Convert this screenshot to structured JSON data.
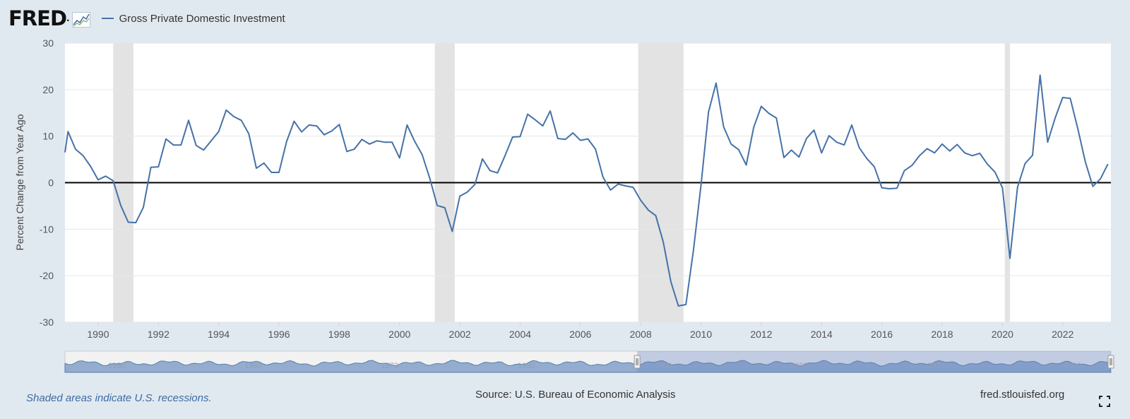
{
  "header": {
    "logo_text": "FRED",
    "legend_label": "Gross Private Domestic Investment"
  },
  "chart_data": {
    "type": "line",
    "title": "",
    "ylabel": "Percent Change from Year Ago",
    "xlabel": "",
    "ylim": [
      -30,
      30
    ],
    "xlim": [
      1988.9,
      2023.6
    ],
    "yticks": [
      -30,
      -20,
      -10,
      0,
      10,
      20,
      30
    ],
    "xticks": [
      "1990",
      "1992",
      "1994",
      "1996",
      "1998",
      "2000",
      "2002",
      "2004",
      "2006",
      "2008",
      "2010",
      "2012",
      "2014",
      "2016",
      "2018",
      "2020",
      "2022"
    ],
    "grid": true,
    "series_color": "#4572a7",
    "recession_color": "#e3e3e3",
    "recessions": [
      [
        1990.5,
        1991.17
      ],
      [
        2001.17,
        2001.83
      ],
      [
        2007.92,
        2009.42
      ],
      [
        2020.08,
        2020.25
      ]
    ],
    "series": [
      {
        "name": "Gross Private Domestic Investment",
        "x": [
          1988.9,
          1989.0,
          1989.25,
          1989.5,
          1989.75,
          1990.0,
          1990.25,
          1990.5,
          1990.75,
          1991.0,
          1991.25,
          1991.5,
          1991.75,
          1992.0,
          1992.25,
          1992.5,
          1992.75,
          1993.0,
          1993.25,
          1993.5,
          1993.75,
          1994.0,
          1994.25,
          1994.5,
          1994.75,
          1995.0,
          1995.25,
          1995.5,
          1995.75,
          1996.0,
          1996.25,
          1996.5,
          1996.75,
          1997.0,
          1997.25,
          1997.5,
          1997.75,
          1998.0,
          1998.25,
          1998.5,
          1998.75,
          1999.0,
          1999.25,
          1999.5,
          1999.75,
          2000.0,
          2000.25,
          2000.5,
          2000.75,
          2001.0,
          2001.25,
          2001.5,
          2001.75,
          2002.0,
          2002.25,
          2002.5,
          2002.75,
          2003.0,
          2003.25,
          2003.5,
          2003.75,
          2004.0,
          2004.25,
          2004.5,
          2004.75,
          2005.0,
          2005.25,
          2005.5,
          2005.75,
          2006.0,
          2006.25,
          2006.5,
          2006.75,
          2007.0,
          2007.25,
          2007.5,
          2007.75,
          2008.0,
          2008.25,
          2008.5,
          2008.75,
          2009.0,
          2009.25,
          2009.5,
          2009.75,
          2010.0,
          2010.25,
          2010.5,
          2010.75,
          2011.0,
          2011.25,
          2011.5,
          2011.75,
          2012.0,
          2012.25,
          2012.5,
          2012.75,
          2013.0,
          2013.25,
          2013.5,
          2013.75,
          2014.0,
          2014.25,
          2014.5,
          2014.75,
          2015.0,
          2015.25,
          2015.5,
          2015.75,
          2016.0,
          2016.25,
          2016.5,
          2016.75,
          2017.0,
          2017.25,
          2017.5,
          2017.75,
          2018.0,
          2018.25,
          2018.5,
          2018.75,
          2019.0,
          2019.25,
          2019.5,
          2019.75,
          2020.0,
          2020.25,
          2020.5,
          2020.75,
          2021.0,
          2021.25,
          2021.5,
          2021.75,
          2022.0,
          2022.25,
          2022.5,
          2022.75,
          2023.0,
          2023.25,
          2023.5
        ],
        "values": [
          6.5,
          11.0,
          7.2,
          5.8,
          3.5,
          0.6,
          1.4,
          0.4,
          -4.9,
          -8.5,
          -8.6,
          -5.3,
          3.3,
          3.4,
          9.4,
          8.1,
          8.1,
          13.4,
          8.0,
          7.0,
          9.0,
          11.0,
          15.6,
          14.2,
          13.4,
          10.5,
          3.1,
          4.2,
          2.2,
          2.2,
          8.8,
          13.2,
          10.9,
          12.4,
          12.2,
          10.3,
          11.1,
          12.5,
          6.7,
          7.2,
          9.3,
          8.3,
          9.0,
          8.7,
          8.7,
          5.3,
          12.4,
          8.9,
          6.0,
          1.0,
          -4.9,
          -5.4,
          -10.5,
          -2.9,
          -2.0,
          -0.4,
          5.1,
          2.6,
          2.1,
          5.8,
          9.8,
          9.9,
          14.7,
          13.5,
          12.2,
          15.4,
          9.5,
          9.3,
          10.7,
          9.1,
          9.4,
          7.2,
          1.2,
          -1.6,
          -0.3,
          -0.7,
          -1.0,
          -3.8,
          -5.9,
          -7.1,
          -12.8,
          -21.3,
          -26.5,
          -26.2,
          -14.5,
          -0.5,
          15.2,
          21.4,
          12.0,
          8.3,
          7.1,
          3.8,
          11.9,
          16.4,
          14.9,
          13.9,
          5.4,
          7.0,
          5.5,
          9.5,
          11.3,
          6.4,
          10.1,
          8.7,
          8.1,
          12.4,
          7.5,
          5.2,
          3.4,
          -1.1,
          -1.3,
          -1.2,
          2.6,
          3.7,
          5.8,
          7.3,
          6.4,
          8.3,
          6.8,
          8.2,
          6.4,
          5.8,
          6.3,
          4.0,
          2.3,
          -1.1,
          -16.3,
          -1.0,
          4.1,
          5.9,
          23.1,
          8.7,
          13.9,
          18.3,
          18.1,
          11.6,
          4.5,
          -0.8,
          0.8,
          4.0
        ]
      }
    ]
  },
  "navigator": {
    "labels": [
      "1950",
      "1960",
      "1970",
      "1980",
      "1990",
      "2000",
      "2010",
      "2020"
    ]
  },
  "footer": {
    "note": "Shaded areas indicate U.S. recessions.",
    "source": "Source: U.S. Bureau of Economic Analysis",
    "url": "fred.stlouisfed.org"
  }
}
